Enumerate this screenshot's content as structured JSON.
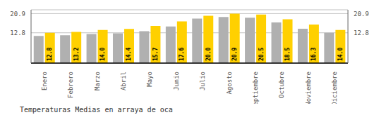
{
  "chart_data": {
    "type": "bar",
    "title": "Temperaturas Medias en arraya de oca",
    "categories": [
      "Enero",
      "Febrero",
      "Marzo",
      "Abril",
      "Mayo",
      "Junio",
      "Julio",
      "Agosto",
      "Septiembre",
      "Octubre",
      "Noviembre",
      "Diciembre"
    ],
    "series": [
      {
        "color": "#B0B0B0",
        "values": [
          11.5,
          11.8,
          12.3,
          12.6,
          13.5,
          15.5,
          18.8,
          19.5,
          19.2,
          17.2,
          14.5,
          12.8
        ]
      },
      {
        "color": "#FFD000",
        "values": [
          12.8,
          13.2,
          14.0,
          14.4,
          15.7,
          17.6,
          20.0,
          20.9,
          20.5,
          18.5,
          16.3,
          14.0
        ],
        "data_labels": true,
        "value_labels": [
          "12.8",
          "13.2",
          "14.0",
          "14.4",
          "15.7",
          "17.6",
          "20.0",
          "20.9",
          "20.5",
          "18.5",
          "16.3",
          "14.0"
        ]
      }
    ],
    "ylim": [
      0,
      22.5
    ],
    "yticks": [
      12.8,
      20.9
    ],
    "grid": true
  }
}
